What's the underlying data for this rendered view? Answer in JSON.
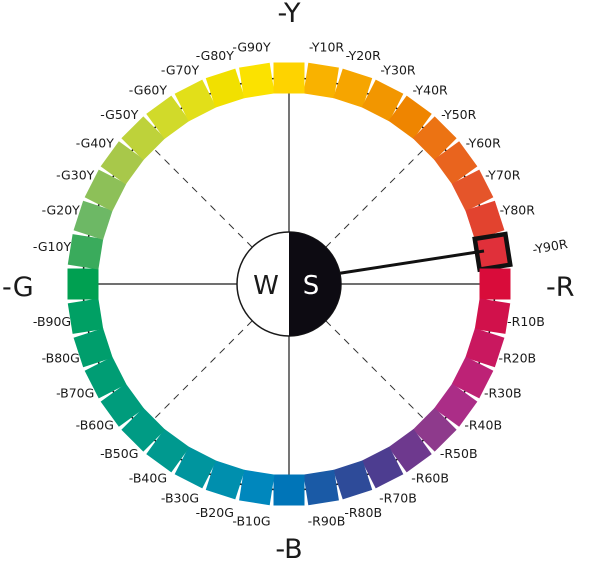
{
  "axis_labels": {
    "top": "-Y",
    "right": "-R",
    "bottom": "-B",
    "left": "-G"
  },
  "center": {
    "white_label": "W",
    "black_label": "S"
  },
  "highlighted_hue": "-Y90R",
  "hues": [
    {
      "label": "-Y10R",
      "color": "#f9b200"
    },
    {
      "label": "-Y20R",
      "color": "#f6a500"
    },
    {
      "label": "-Y30R",
      "color": "#f29600"
    },
    {
      "label": "-Y40R",
      "color": "#ef8500"
    },
    {
      "label": "-Y50R",
      "color": "#ec7313"
    },
    {
      "label": "-Y60R",
      "color": "#e9641e"
    },
    {
      "label": "-Y70R",
      "color": "#e5552a"
    },
    {
      "label": "-Y80R",
      "color": "#e2432f"
    },
    {
      "label": "-Y90R",
      "color": "#e0303a"
    },
    {
      "label": "",
      "color": "#d90c3a"
    },
    {
      "label": "-R10B",
      "color": "#d1114b"
    },
    {
      "label": "-R20B",
      "color": "#c9185f"
    },
    {
      "label": "-R30B",
      "color": "#bd2276"
    },
    {
      "label": "-R40B",
      "color": "#ab2d87"
    },
    {
      "label": "-R50B",
      "color": "#8e3a8c"
    },
    {
      "label": "-R60B",
      "color": "#6e398e"
    },
    {
      "label": "-R70B",
      "color": "#4d3d90"
    },
    {
      "label": "-R80B",
      "color": "#2e4b99"
    },
    {
      "label": "-R90B",
      "color": "#1a5aa6"
    },
    {
      "label": "",
      "color": "#0075b8"
    },
    {
      "label": "-B10G",
      "color": "#0087bd"
    },
    {
      "label": "-B20G",
      "color": "#008fae"
    },
    {
      "label": "-B30G",
      "color": "#00959e"
    },
    {
      "label": "-B40G",
      "color": "#00998f"
    },
    {
      "label": "-B50G",
      "color": "#009b84"
    },
    {
      "label": "-B60G",
      "color": "#009c7c"
    },
    {
      "label": "-B70G",
      "color": "#009d74"
    },
    {
      "label": "-B80G",
      "color": "#009e6c"
    },
    {
      "label": "-B90G",
      "color": "#00a064"
    },
    {
      "label": "",
      "color": "#00a051"
    },
    {
      "label": "-G10Y",
      "color": "#3aab5c"
    },
    {
      "label": "-G20Y",
      "color": "#6db865"
    },
    {
      "label": "-G30Y",
      "color": "#8dc058"
    },
    {
      "label": "-G40Y",
      "color": "#a8c84a"
    },
    {
      "label": "-G50Y",
      "color": "#bed23a"
    },
    {
      "label": "-G60Y",
      "color": "#d1da2a"
    },
    {
      "label": "-G70Y",
      "color": "#e2df19"
    },
    {
      "label": "-G80Y",
      "color": "#f1e000"
    },
    {
      "label": "-G90Y",
      "color": "#fbe200"
    },
    {
      "label": "",
      "color": "#fed300"
    }
  ]
}
